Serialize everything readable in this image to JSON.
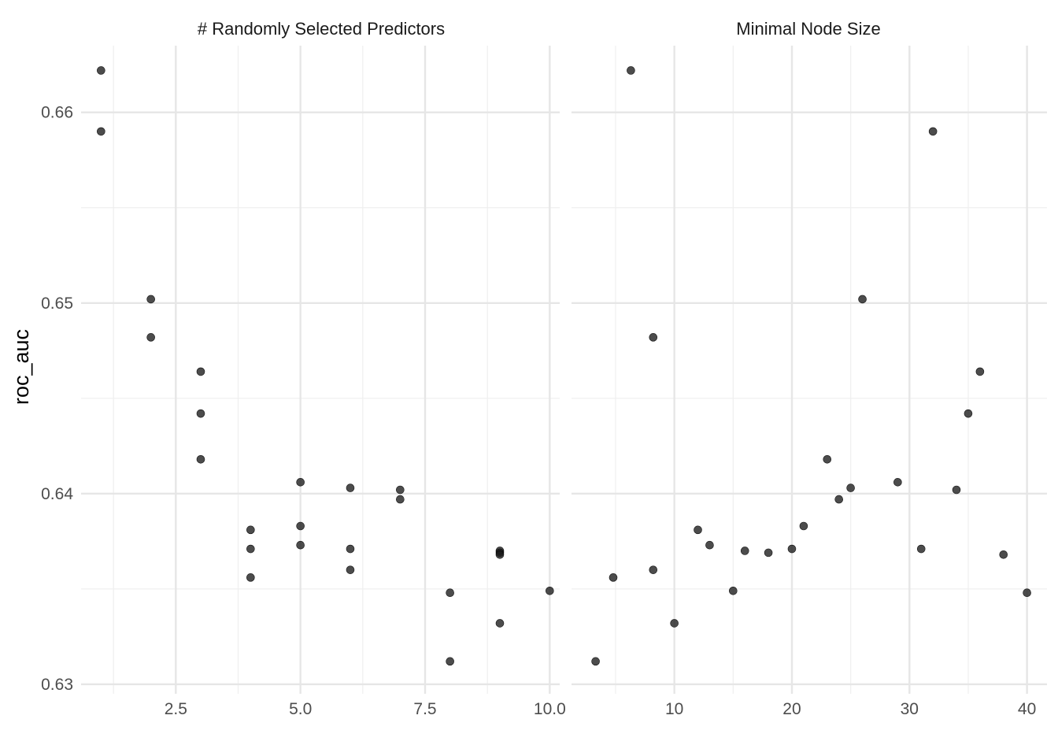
{
  "chart_data": {
    "type": "scatter",
    "ylabel": "roc_auc",
    "ylim": [
      0.6295,
      0.6635
    ],
    "yticks": [
      0.63,
      0.64,
      0.65,
      0.66
    ],
    "ytick_labels": [
      "0.63",
      "0.64",
      "0.65",
      "0.66"
    ],
    "grid": true,
    "point_color": "#1a1a1a",
    "panels": [
      {
        "title": "# Randomly Selected Predictors",
        "xlim": [
          0.6,
          10.2
        ],
        "xticks": [
          2.5,
          5.0,
          7.5,
          10.0
        ],
        "xtick_labels": [
          "2.5",
          "5.0",
          "7.5",
          "10.0"
        ],
        "points": [
          {
            "x": 1,
            "y": 0.6622
          },
          {
            "x": 1,
            "y": 0.659
          },
          {
            "x": 2,
            "y": 0.6502
          },
          {
            "x": 2,
            "y": 0.6482
          },
          {
            "x": 3,
            "y": 0.6464
          },
          {
            "x": 3,
            "y": 0.6442
          },
          {
            "x": 3,
            "y": 0.6418
          },
          {
            "x": 4,
            "y": 0.6381
          },
          {
            "x": 4,
            "y": 0.6371
          },
          {
            "x": 4,
            "y": 0.6356
          },
          {
            "x": 5,
            "y": 0.6406
          },
          {
            "x": 5,
            "y": 0.6383
          },
          {
            "x": 5,
            "y": 0.6373
          },
          {
            "x": 6,
            "y": 0.6403
          },
          {
            "x": 6,
            "y": 0.6371
          },
          {
            "x": 6,
            "y": 0.636
          },
          {
            "x": 7,
            "y": 0.6402
          },
          {
            "x": 7,
            "y": 0.6397
          },
          {
            "x": 8,
            "y": 0.6348
          },
          {
            "x": 8,
            "y": 0.6312
          },
          {
            "x": 9,
            "y": 0.637
          },
          {
            "x": 9,
            "y": 0.6369
          },
          {
            "x": 9,
            "y": 0.6368
          },
          {
            "x": 9,
            "y": 0.6332
          },
          {
            "x": 10,
            "y": 0.6349
          }
        ]
      },
      {
        "title": "Minimal Node Size",
        "xlim": [
          1.25,
          41.7
        ],
        "xticks": [
          10,
          20,
          30,
          40
        ],
        "xtick_labels": [
          "10",
          "20",
          "30",
          "40"
        ],
        "points": [
          {
            "x": 6.3,
            "y": 0.6622
          },
          {
            "x": 32,
            "y": 0.659
          },
          {
            "x": 26,
            "y": 0.6502
          },
          {
            "x": 8.2,
            "y": 0.6482
          },
          {
            "x": 36,
            "y": 0.6464
          },
          {
            "x": 35,
            "y": 0.6442
          },
          {
            "x": 23,
            "y": 0.6418
          },
          {
            "x": 12,
            "y": 0.6381
          },
          {
            "x": 31,
            "y": 0.6371
          },
          {
            "x": 4.8,
            "y": 0.6356
          },
          {
            "x": 29,
            "y": 0.6406
          },
          {
            "x": 21,
            "y": 0.6383
          },
          {
            "x": 13,
            "y": 0.6373
          },
          {
            "x": 25,
            "y": 0.6403
          },
          {
            "x": 20,
            "y": 0.6371
          },
          {
            "x": 8.2,
            "y": 0.636
          },
          {
            "x": 34,
            "y": 0.6402
          },
          {
            "x": 24,
            "y": 0.6397
          },
          {
            "x": 40,
            "y": 0.6348
          },
          {
            "x": 3.3,
            "y": 0.6312
          },
          {
            "x": 16,
            "y": 0.637
          },
          {
            "x": 18,
            "y": 0.6369
          },
          {
            "x": 38,
            "y": 0.6368
          },
          {
            "x": 10,
            "y": 0.6332
          },
          {
            "x": 15,
            "y": 0.6349
          }
        ]
      }
    ]
  }
}
